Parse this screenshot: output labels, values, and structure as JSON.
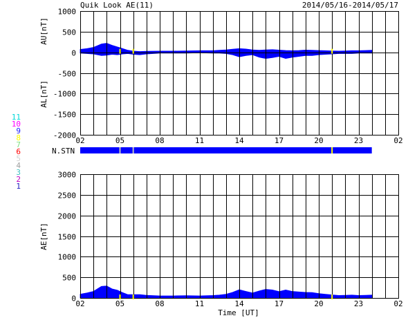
{
  "header": {
    "title": "Quik Look AE(11)",
    "date_range": "2014/05/16-2014/05/17"
  },
  "colors": {
    "fill": "#0000ff",
    "marker": "#ffff00",
    "station_bar": "#0000ff"
  },
  "station_legend": [
    {
      "label": "11",
      "color": "#00d8d8"
    },
    {
      "label": "10",
      "color": "#ff00ff"
    },
    {
      "label": "9",
      "color": "#2020ff"
    },
    {
      "label": "8",
      "color": "#ffff00"
    },
    {
      "label": "7",
      "color": "#80e080"
    },
    {
      "label": "6",
      "color": "#ff0000"
    },
    {
      "label": "5",
      "color": "#d0d0d0"
    },
    {
      "label": "4",
      "color": "#a0a0a0"
    },
    {
      "label": "3",
      "color": "#40c0c0"
    },
    {
      "label": "2",
      "color": "#c000c0"
    },
    {
      "label": "1",
      "color": "#2020c0"
    }
  ],
  "station_bar": {
    "label": "N.STN",
    "end_hours": 24,
    "marker_hours": [
      5,
      6,
      21
    ]
  },
  "chart_data": [
    {
      "type": "area",
      "ylabel_top": "AU[nT]",
      "ylabel_bottom": "AL[nT]",
      "ylim": [
        -2000,
        1000
      ],
      "yticks": [
        1000,
        500,
        0,
        -500,
        -1000,
        -1500,
        -2000
      ],
      "xlim": [
        2,
        26
      ],
      "xtick_labels": [
        "02",
        "05",
        "08",
        "11",
        "14",
        "17",
        "20",
        "23",
        "02"
      ],
      "grid": true,
      "marker_hours": [
        5,
        6,
        21
      ],
      "series": [
        {
          "key": "AU",
          "x": [
            2.0,
            2.5,
            3.0,
            3.3,
            3.6,
            4.0,
            4.4,
            4.8,
            5.2,
            5.6,
            6.0,
            6.5,
            7.0,
            8.0,
            9.0,
            10.0,
            11.0,
            12.0,
            12.5,
            13.0,
            13.5,
            14.0,
            14.5,
            15.0,
            15.5,
            16.0,
            16.5,
            17.0,
            17.5,
            18.0,
            18.5,
            19.0,
            19.5,
            20.0,
            20.5,
            21.0,
            21.5,
            22.0,
            22.5,
            23.0,
            23.5,
            24.0
          ],
          "values": [
            70,
            90,
            120,
            160,
            200,
            220,
            170,
            130,
            90,
            50,
            30,
            20,
            25,
            30,
            30,
            35,
            40,
            40,
            50,
            60,
            75,
            90,
            80,
            60,
            50,
            60,
            65,
            55,
            45,
            40,
            45,
            55,
            50,
            45,
            40,
            35,
            30,
            35,
            40,
            40,
            45,
            50
          ]
        },
        {
          "key": "AL",
          "x": [
            2.0,
            2.5,
            3.0,
            3.3,
            3.6,
            4.0,
            4.4,
            4.8,
            5.2,
            5.6,
            6.0,
            6.5,
            7.0,
            8.0,
            9.0,
            10.0,
            11.0,
            12.0,
            12.5,
            13.0,
            13.5,
            14.0,
            14.5,
            15.0,
            15.5,
            16.0,
            16.5,
            17.0,
            17.5,
            18.0,
            18.5,
            19.0,
            19.5,
            20.0,
            20.5,
            21.0,
            21.5,
            22.0,
            22.5,
            23.0,
            23.5,
            24.0
          ],
          "values": [
            -20,
            -30,
            -40,
            -60,
            -80,
            -70,
            -50,
            -60,
            -40,
            -30,
            -50,
            -60,
            -40,
            -20,
            -20,
            -20,
            -10,
            -20,
            -20,
            -30,
            -60,
            -110,
            -80,
            -60,
            -120,
            -150,
            -130,
            -100,
            -150,
            -120,
            -100,
            -80,
            -80,
            -60,
            -50,
            -40,
            -30,
            -30,
            -30,
            -20,
            -20,
            -20
          ]
        }
      ]
    },
    {
      "type": "area",
      "ylabel": "AE[nT]",
      "xlabel": "Time [UT]",
      "ylim": [
        0,
        3000
      ],
      "yticks": [
        3000,
        2500,
        2000,
        1500,
        1000,
        500,
        0
      ],
      "xlim": [
        2,
        26
      ],
      "xtick_labels": [
        "02",
        "05",
        "08",
        "11",
        "14",
        "17",
        "20",
        "23",
        "02"
      ],
      "grid": true,
      "marker_hours": [
        5,
        6,
        21
      ],
      "series": [
        {
          "key": "AE",
          "x": [
            2.0,
            2.5,
            3.0,
            3.3,
            3.6,
            4.0,
            4.4,
            4.8,
            5.2,
            5.6,
            6.0,
            6.5,
            7.0,
            8.0,
            9.0,
            10.0,
            11.0,
            12.0,
            12.5,
            13.0,
            13.5,
            14.0,
            14.5,
            15.0,
            15.5,
            16.0,
            16.5,
            17.0,
            17.5,
            18.0,
            18.5,
            19.0,
            19.5,
            20.0,
            20.5,
            21.0,
            21.5,
            22.0,
            22.5,
            23.0,
            23.5,
            24.0
          ],
          "values": [
            90,
            120,
            160,
            220,
            280,
            290,
            220,
            190,
            130,
            80,
            80,
            80,
            65,
            50,
            50,
            55,
            50,
            60,
            70,
            90,
            135,
            200,
            160,
            120,
            170,
            210,
            195,
            155,
            195,
            160,
            145,
            135,
            130,
            105,
            90,
            75,
            60,
            65,
            70,
            60,
            65,
            70
          ]
        }
      ]
    }
  ]
}
